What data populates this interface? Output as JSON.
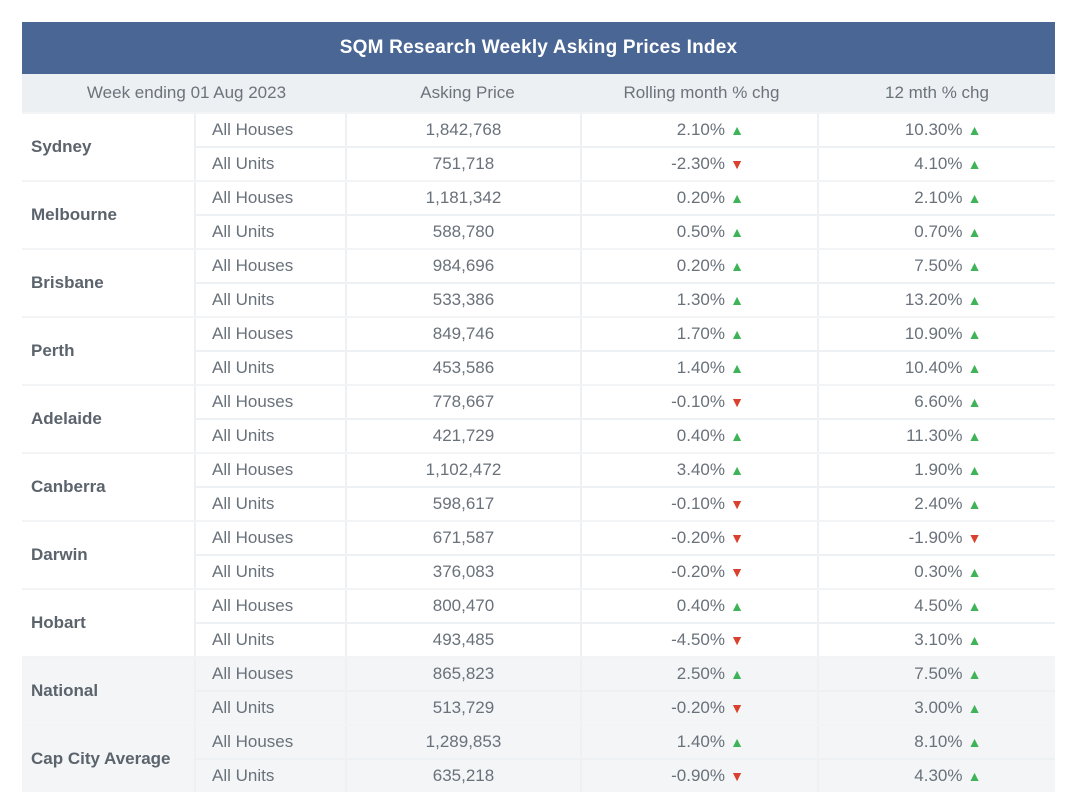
{
  "title": "SQM Research Weekly Asking Prices Index",
  "headers": {
    "week": "Week ending 01 Aug 2023",
    "price": "Asking Price",
    "rolling": "Rolling month % chg",
    "yearly": "12 mth % chg"
  },
  "colors": {
    "header_bg": "#4a6694",
    "up": "#3fb357",
    "down": "#d9412e"
  },
  "rows": [
    {
      "city": "Sydney",
      "items": [
        {
          "type": "All Houses",
          "price": "1,842,768",
          "rolling": "2.10%",
          "rolling_dir": "up",
          "yearly": "10.30%",
          "yearly_dir": "up"
        },
        {
          "type": "All Units",
          "price": "751,718",
          "rolling": "-2.30%",
          "rolling_dir": "down",
          "yearly": "4.10%",
          "yearly_dir": "up"
        }
      ]
    },
    {
      "city": "Melbourne",
      "items": [
        {
          "type": "All Houses",
          "price": "1,181,342",
          "rolling": "0.20%",
          "rolling_dir": "up",
          "yearly": "2.10%",
          "yearly_dir": "up"
        },
        {
          "type": "All Units",
          "price": "588,780",
          "rolling": "0.50%",
          "rolling_dir": "up",
          "yearly": "0.70%",
          "yearly_dir": "up"
        }
      ]
    },
    {
      "city": "Brisbane",
      "items": [
        {
          "type": "All Houses",
          "price": "984,696",
          "rolling": "0.20%",
          "rolling_dir": "up",
          "yearly": "7.50%",
          "yearly_dir": "up"
        },
        {
          "type": "All Units",
          "price": "533,386",
          "rolling": "1.30%",
          "rolling_dir": "up",
          "yearly": "13.20%",
          "yearly_dir": "up"
        }
      ]
    },
    {
      "city": "Perth",
      "items": [
        {
          "type": "All Houses",
          "price": "849,746",
          "rolling": "1.70%",
          "rolling_dir": "up",
          "yearly": "10.90%",
          "yearly_dir": "up"
        },
        {
          "type": "All Units",
          "price": "453,586",
          "rolling": "1.40%",
          "rolling_dir": "up",
          "yearly": "10.40%",
          "yearly_dir": "up"
        }
      ]
    },
    {
      "city": "Adelaide",
      "items": [
        {
          "type": "All Houses",
          "price": "778,667",
          "rolling": "-0.10%",
          "rolling_dir": "down",
          "yearly": "6.60%",
          "yearly_dir": "up"
        },
        {
          "type": "All Units",
          "price": "421,729",
          "rolling": "0.40%",
          "rolling_dir": "up",
          "yearly": "11.30%",
          "yearly_dir": "up"
        }
      ]
    },
    {
      "city": "Canberra",
      "items": [
        {
          "type": "All Houses",
          "price": "1,102,472",
          "rolling": "3.40%",
          "rolling_dir": "up",
          "yearly": "1.90%",
          "yearly_dir": "up"
        },
        {
          "type": "All Units",
          "price": "598,617",
          "rolling": "-0.10%",
          "rolling_dir": "down",
          "yearly": "2.40%",
          "yearly_dir": "up"
        }
      ]
    },
    {
      "city": "Darwin",
      "items": [
        {
          "type": "All Houses",
          "price": "671,587",
          "rolling": "-0.20%",
          "rolling_dir": "down",
          "yearly": "-1.90%",
          "yearly_dir": "down"
        },
        {
          "type": "All Units",
          "price": "376,083",
          "rolling": "-0.20%",
          "rolling_dir": "down",
          "yearly": "0.30%",
          "yearly_dir": "up"
        }
      ]
    },
    {
      "city": "Hobart",
      "items": [
        {
          "type": "All Houses",
          "price": "800,470",
          "rolling": "0.40%",
          "rolling_dir": "up",
          "yearly": "4.50%",
          "yearly_dir": "up"
        },
        {
          "type": "All Units",
          "price": "493,485",
          "rolling": "-4.50%",
          "rolling_dir": "down",
          "yearly": "3.10%",
          "yearly_dir": "up"
        }
      ]
    },
    {
      "city": "National",
      "shaded": true,
      "items": [
        {
          "type": "All Houses",
          "price": "865,823",
          "rolling": "2.50%",
          "rolling_dir": "up",
          "yearly": "7.50%",
          "yearly_dir": "up"
        },
        {
          "type": "All Units",
          "price": "513,729",
          "rolling": "-0.20%",
          "rolling_dir": "down",
          "yearly": "3.00%",
          "yearly_dir": "up"
        }
      ]
    },
    {
      "city": "Cap City Average",
      "shaded": true,
      "items": [
        {
          "type": "All Houses",
          "price": "1,289,853",
          "rolling": "1.40%",
          "rolling_dir": "up",
          "yearly": "8.10%",
          "yearly_dir": "up"
        },
        {
          "type": "All Units",
          "price": "635,218",
          "rolling": "-0.90%",
          "rolling_dir": "down",
          "yearly": "4.30%",
          "yearly_dir": "up"
        }
      ]
    }
  ]
}
